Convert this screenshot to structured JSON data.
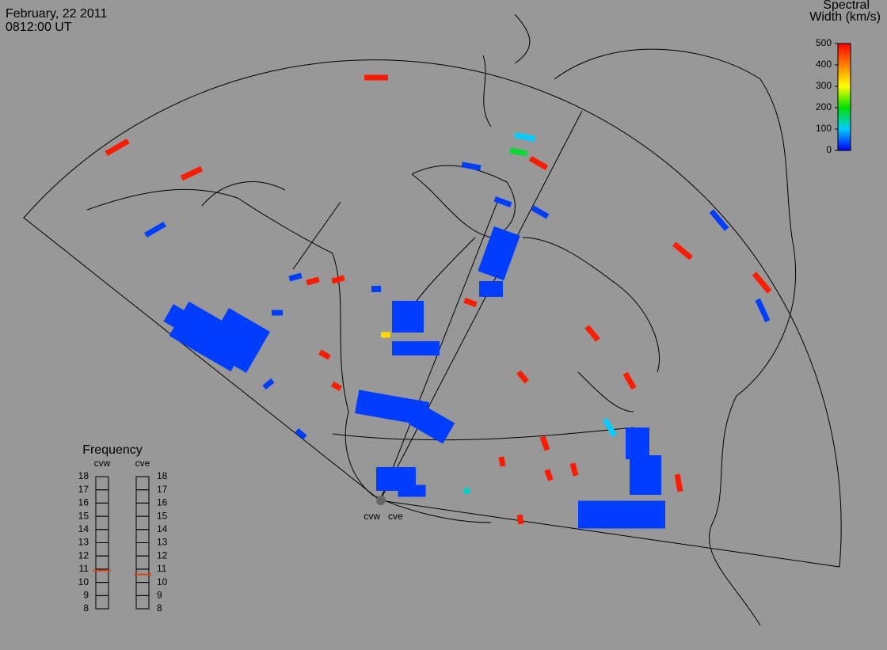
{
  "header": {
    "date": "February, 22 2011",
    "time": "0812:00 UT"
  },
  "colorbar": {
    "title_line1": "Spectral",
    "title_line2": "Width (km/s)",
    "range": [
      0,
      500
    ],
    "ticks": [
      0,
      100,
      200,
      300,
      400,
      500
    ]
  },
  "radars": [
    "cvw",
    "cve"
  ],
  "frequency": {
    "title": "Frequency",
    "range": [
      8,
      18
    ],
    "ticks": [
      8,
      9,
      10,
      11,
      12,
      13,
      14,
      15,
      16,
      17,
      18
    ],
    "series": [
      {
        "name": "cvw",
        "value": 10.9
      },
      {
        "name": "cve",
        "value": 10.6
      }
    ]
  },
  "cells": [
    480,
    480,
    480,
    480,
    480,
    480,
    480,
    480,
    480,
    480,
    480,
    480,
    480,
    480,
    480,
    480,
    480,
    480,
    480,
    480,
    30,
    30,
    30,
    30,
    30,
    30,
    30,
    30,
    30,
    30,
    100,
    100,
    100,
    180,
    330,
    120,
    30,
    30,
    30,
    30,
    30,
    30,
    30,
    30,
    30,
    30,
    30,
    30,
    30,
    30,
    30
  ]
}
